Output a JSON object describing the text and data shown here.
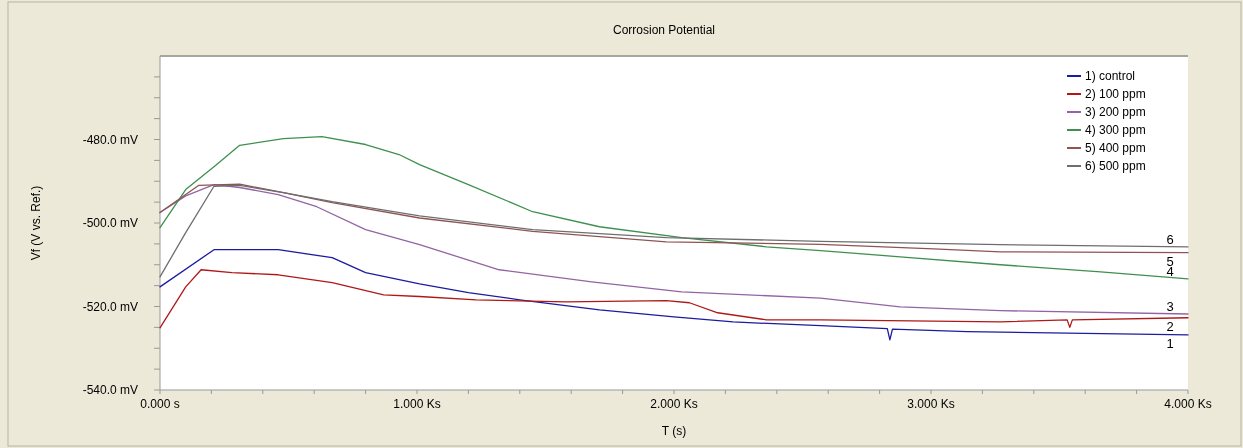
{
  "chart_data": {
    "type": "line",
    "title": "Corrosion Potential",
    "xlabel": "T (s)",
    "ylabel": "Vf (V vs. Ref.)",
    "xlim": [
      0,
      4
    ],
    "ylim": [
      -540,
      -460
    ],
    "xticks": [
      {
        "value": 0,
        "label": "0.000 s"
      },
      {
        "value": 0.2,
        "label": null
      },
      {
        "value": 0.4,
        "label": null
      },
      {
        "value": 0.6,
        "label": null
      },
      {
        "value": 0.8,
        "label": null
      },
      {
        "value": 1,
        "label": "1.000 Ks"
      },
      {
        "value": 1.2,
        "label": null
      },
      {
        "value": 1.4,
        "label": null
      },
      {
        "value": 1.6,
        "label": null
      },
      {
        "value": 1.8,
        "label": null
      },
      {
        "value": 2,
        "label": "2.000 Ks"
      },
      {
        "value": 2.2,
        "label": null
      },
      {
        "value": 2.4,
        "label": null
      },
      {
        "value": 2.6,
        "label": null
      },
      {
        "value": 2.8,
        "label": null
      },
      {
        "value": 3,
        "label": "3.000 Ks"
      },
      {
        "value": 3.2,
        "label": null
      },
      {
        "value": 3.4,
        "label": null
      },
      {
        "value": 3.6,
        "label": null
      },
      {
        "value": 3.8,
        "label": null
      },
      {
        "value": 4,
        "label": "4.000 Ks"
      }
    ],
    "yticks": [
      {
        "value": -540,
        "label": "-540.0 mV"
      },
      {
        "value": -535,
        "label": null
      },
      {
        "value": -530,
        "label": null
      },
      {
        "value": -525,
        "label": null
      },
      {
        "value": -520,
        "label": "-520.0 mV"
      },
      {
        "value": -515,
        "label": null
      },
      {
        "value": -510,
        "label": null
      },
      {
        "value": -505,
        "label": null
      },
      {
        "value": -500,
        "label": "-500.0 mV"
      },
      {
        "value": -495,
        "label": null
      },
      {
        "value": -490,
        "label": null
      },
      {
        "value": -485,
        "label": null
      },
      {
        "value": -480,
        "label": "-480.0 mV"
      },
      {
        "value": -475,
        "label": null
      },
      {
        "value": -470,
        "label": null
      },
      {
        "value": -465,
        "label": null
      }
    ],
    "grid": false,
    "legend": "top right",
    "marker": "none",
    "line_style": "solid",
    "series": [
      {
        "name": "1) control",
        "color": "#1c1ca0",
        "x": [
          0,
          0.21,
          0.46,
          0.67,
          0.8,
          1.01,
          1.2,
          1.4,
          1.71,
          2,
          2.23,
          2.57,
          2.83,
          2.84,
          2.85,
          3.14,
          4
        ],
        "values": [
          -515.3,
          -506.4,
          -506.4,
          -508.3,
          -511.9,
          -514.6,
          -516.7,
          -518.4,
          -520.8,
          -522.5,
          -523.7,
          -524.6,
          -525.3,
          -528,
          -525.4,
          -526,
          -526.8
        ]
      },
      {
        "name": "2) 100 ppm",
        "color": "#b01818",
        "x": [
          0,
          0.1,
          0.16,
          0.28,
          0.46,
          0.67,
          0.87,
          1.01,
          1.23,
          1.58,
          1.97,
          2.06,
          2.17,
          2.36,
          2.57,
          3.27,
          3.53,
          3.54,
          3.55,
          4
        ],
        "values": [
          -525.1,
          -515.3,
          -511.2,
          -511.9,
          -512.4,
          -514.3,
          -517.2,
          -517.6,
          -518.4,
          -518.9,
          -518.6,
          -519.1,
          -521.5,
          -523.2,
          -523.2,
          -523.7,
          -523.2,
          -525,
          -523.2,
          -522.7
        ]
      },
      {
        "name": "3) 200 ppm",
        "color": "#9364a4",
        "x": [
          0,
          0.1,
          0.21,
          0.31,
          0.46,
          0.61,
          0.8,
          1.01,
          1.32,
          1.68,
          2.03,
          2.57,
          2.88,
          3.27,
          4
        ],
        "values": [
          -497.5,
          -493.5,
          -490.8,
          -491.5,
          -493.2,
          -496.1,
          -501.6,
          -505.2,
          -511.2,
          -514.1,
          -516.5,
          -518,
          -520.1,
          -521,
          -521.8
        ]
      },
      {
        "name": "4) 300 ppm",
        "color": "#3f8f4f",
        "x": [
          0,
          0.1,
          0.21,
          0.31,
          0.48,
          0.63,
          0.8,
          0.93,
          1.01,
          1.2,
          1.45,
          1.71,
          2.03,
          2.36,
          2.57,
          2.88,
          3.27,
          3.66,
          4
        ],
        "values": [
          -501.1,
          -492,
          -486.5,
          -481.4,
          -479.8,
          -479.3,
          -481.2,
          -483.6,
          -486,
          -490.8,
          -497.3,
          -500.9,
          -503.5,
          -505.7,
          -506.6,
          -508.1,
          -510,
          -511.7,
          -513.4
        ]
      },
      {
        "name": "5) 400 ppm",
        "color": "#8e5454",
        "x": [
          0,
          0.15,
          0.31,
          0.48,
          0.67,
          1.01,
          1.45,
          1.97,
          2.57,
          3.01,
          3.27,
          4
        ],
        "values": [
          -497.5,
          -491,
          -490.7,
          -492.7,
          -495.1,
          -498.8,
          -502,
          -504.5,
          -505.1,
          -506.2,
          -506.9,
          -507.1
        ]
      },
      {
        "name": "6) 500 ppm",
        "color": "#6e6e6e",
        "x": [
          0,
          0.1,
          0.21,
          0.31,
          0.48,
          0.67,
          1.01,
          1.45,
          1.97,
          2.57,
          3.27,
          4
        ],
        "values": [
          -512.9,
          -502.3,
          -491.2,
          -491,
          -492.7,
          -494.9,
          -498.3,
          -501.6,
          -503.5,
          -504.4,
          -505.2,
          -505.7
        ]
      }
    ],
    "annotations": [
      {
        "text": "6",
        "y": -505.7
      },
      {
        "text": "5",
        "y": -507.1
      },
      {
        "text": "4",
        "y": -513.3
      },
      {
        "text": "3",
        "y": -521.8
      },
      {
        "text": "2",
        "y": -522.7
      },
      {
        "text": "1",
        "y": -526.8
      }
    ]
  }
}
